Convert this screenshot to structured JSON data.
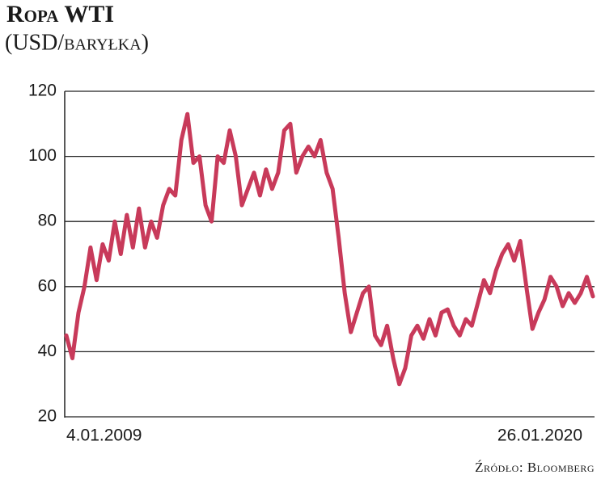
{
  "chart_data": {
    "type": "line",
    "title": "Ropa WTI",
    "subtitle": "(USD/baryłka)",
    "source": "Źródło: Bloomberg",
    "categories": [
      "4.01.2009",
      null,
      null,
      null,
      null,
      null,
      null,
      null,
      null,
      null,
      null,
      null,
      null,
      null,
      null,
      null,
      null,
      null,
      null,
      null,
      null,
      null,
      null,
      null,
      null,
      null,
      null,
      null,
      null,
      null,
      null,
      null,
      null,
      null,
      null,
      null,
      null,
      null,
      null,
      null,
      null,
      null,
      null,
      null,
      null,
      null,
      null,
      null,
      null,
      null,
      null,
      null,
      null,
      null,
      null,
      null,
      null,
      null,
      null,
      null,
      null,
      null,
      null,
      null,
      null,
      null,
      null,
      null,
      null,
      null,
      null,
      null,
      null,
      null,
      null,
      null,
      null,
      null,
      null,
      null,
      null,
      null,
      null,
      null,
      null,
      null,
      null,
      "26.01.2020"
    ],
    "series": [
      {
        "name": "WTI",
        "color": "#c83a5a",
        "values": [
          45,
          38,
          52,
          60,
          72,
          62,
          73,
          68,
          80,
          70,
          82,
          72,
          84,
          72,
          80,
          75,
          85,
          90,
          88,
          105,
          113,
          98,
          100,
          85,
          80,
          100,
          98,
          108,
          100,
          85,
          90,
          95,
          88,
          96,
          90,
          95,
          108,
          110,
          95,
          100,
          103,
          100,
          105,
          95,
          90,
          75,
          58,
          46,
          52,
          58,
          60,
          45,
          42,
          48,
          38,
          30,
          35,
          45,
          48,
          44,
          50,
          45,
          52,
          53,
          48,
          45,
          50,
          48,
          55,
          62,
          58,
          65,
          70,
          73,
          68,
          74,
          60,
          47,
          52,
          56,
          63,
          60,
          54,
          58,
          55,
          58,
          63,
          57
        ]
      }
    ],
    "ylim": [
      20,
      120
    ],
    "yticks": [
      20,
      40,
      60,
      80,
      100,
      120
    ],
    "grid": true
  }
}
